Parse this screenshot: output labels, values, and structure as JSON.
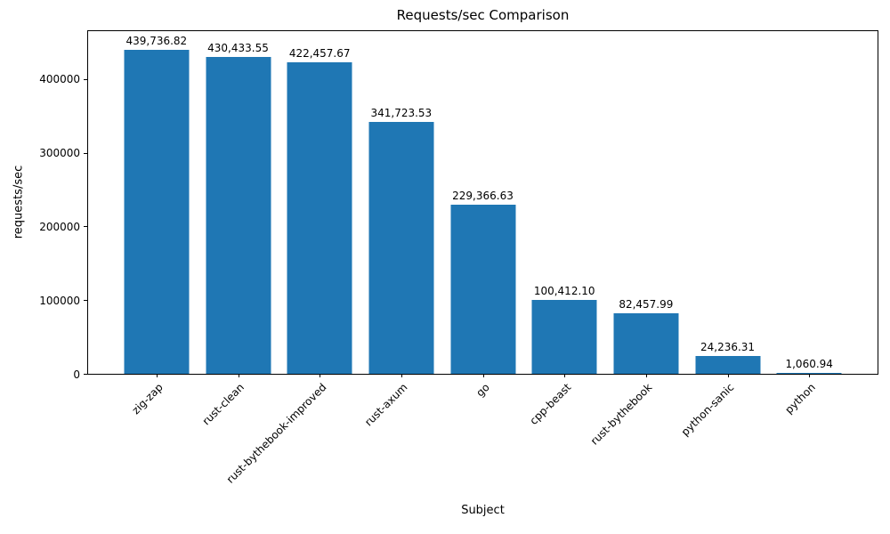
{
  "chart_data": {
    "type": "bar",
    "title": "Requests/sec Comparison",
    "xlabel": "Subject",
    "ylabel": "requests/sec",
    "categories": [
      "zig-zap",
      "rust-clean",
      "rust-bythebook-improved",
      "rust-axum",
      "go",
      "cpp-beast",
      "rust-bythebook",
      "python-sanic",
      "python"
    ],
    "values": [
      439736.82,
      430433.55,
      422457.67,
      341723.53,
      229366.63,
      100412.1,
      82457.99,
      24236.31,
      1060.94
    ],
    "value_labels": [
      "439,736.82",
      "430,433.55",
      "422,457.67",
      "341,723.53",
      "229,366.63",
      "100,412.10",
      "82,457.99",
      "24,236.31",
      "1,060.94"
    ],
    "ytick_values": [
      0,
      100000,
      200000,
      300000,
      400000
    ],
    "ytick_labels": [
      "0",
      "100000",
      "200000",
      "300000",
      "400000"
    ],
    "ylim": [
      0,
      465000
    ],
    "bar_color": "#1f77b4",
    "grid": false,
    "legend_position": "none",
    "x_tick_rotation_deg": 45
  }
}
